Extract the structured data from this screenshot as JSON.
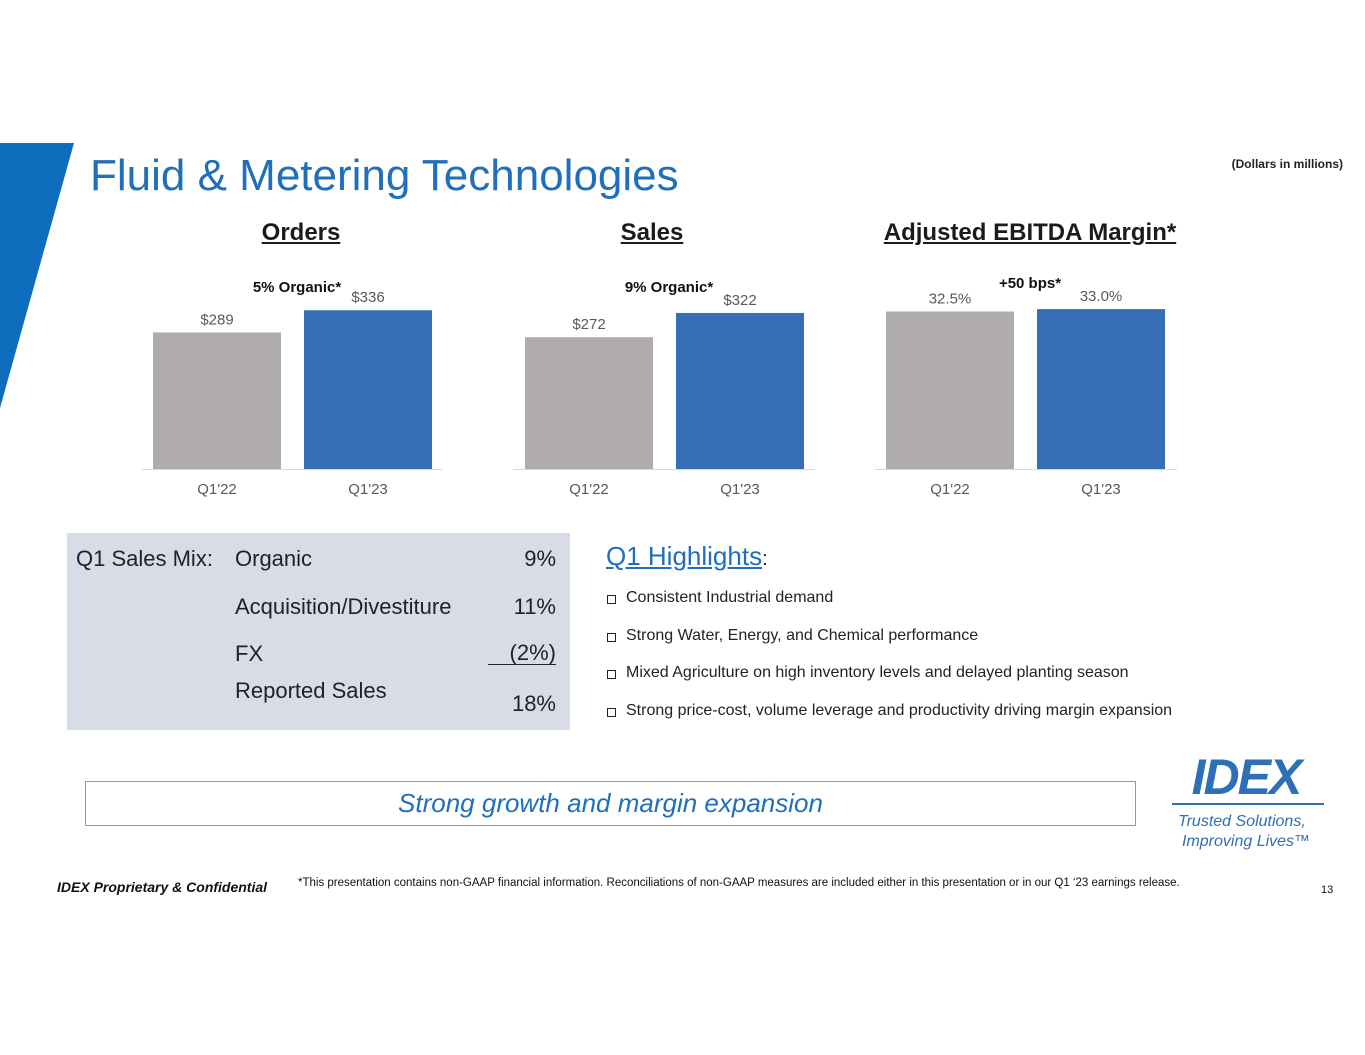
{
  "title": "Fluid & Metering Technologies",
  "units_note": "(Dollars in millions)",
  "colors": {
    "accent": "#0f6dbd",
    "prior": "#afacab",
    "current": "#366fb5",
    "title": "#1f6fba"
  },
  "charts": [
    {
      "heading": "Orders",
      "subtitle": "5% Organic*"
    },
    {
      "heading": "Sales",
      "subtitle": "9% Organic*"
    },
    {
      "heading": "Adjusted EBITDA Margin*",
      "subtitle": "+50 bps*"
    }
  ],
  "chart_data": [
    {
      "type": "bar",
      "title": "Orders",
      "subtitle": "5% Organic*",
      "categories": [
        "Q1'22",
        "Q1'23"
      ],
      "values": [
        289,
        336
      ],
      "labels": [
        "$289",
        "$336"
      ],
      "ylim": [
        0,
        400
      ]
    },
    {
      "type": "bar",
      "title": "Sales",
      "subtitle": "9% Organic*",
      "categories": [
        "Q1'22",
        "Q1'23"
      ],
      "values": [
        272,
        322
      ],
      "labels": [
        "$272",
        "$322"
      ],
      "ylim": [
        0,
        390
      ]
    },
    {
      "type": "bar",
      "title": "Adjusted EBITDA Margin*",
      "subtitle": "+50 bps*",
      "categories": [
        "Q1'22",
        "Q1'23"
      ],
      "values": [
        32.5,
        33.0
      ],
      "labels": [
        "32.5%",
        "33.0%"
      ],
      "ylim": [
        0,
        39
      ]
    }
  ],
  "sales_mix": {
    "label": "Q1 Sales Mix:",
    "rows": [
      {
        "name": "Organic",
        "value": "9%"
      },
      {
        "name": "Acquisition/Divestiture",
        "value": "11%"
      },
      {
        "name": "FX",
        "value": "(2%)"
      },
      {
        "name": "Reported Sales",
        "value": "18%"
      }
    ]
  },
  "highlights": {
    "title": "Q1 Highlights",
    "colon": ":",
    "items": [
      "Consistent Industrial demand",
      "Strong Water, Energy, and Chemical performance",
      "Mixed Agriculture on high inventory levels and delayed planting season",
      "Strong price-cost, volume leverage and productivity driving margin expansion"
    ]
  },
  "banner": "Strong growth and margin expansion",
  "logo": {
    "wordmark": "IDEX",
    "tagline_1": "Trusted Solutions,",
    "tagline_2": "Improving Lives™"
  },
  "footer": {
    "left": "IDEX Proprietary & Confidential",
    "note": "*This presentation contains non-GAAP financial information. Reconciliations of non-GAAP measures are included either in this presentation or in our Q1 ‘23 earnings release.",
    "page": "13"
  }
}
